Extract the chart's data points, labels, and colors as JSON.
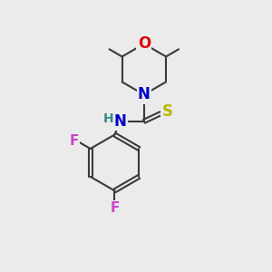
{
  "bg_color": "#ebebeb",
  "bond_color": "#3a3a3a",
  "bond_width": 1.5,
  "atom_colors": {
    "O": "#e00000",
    "N": "#0000cc",
    "S": "#b8b800",
    "F": "#cc44cc",
    "H": "#3a8a8a",
    "C": "#3a3a3a"
  },
  "fs": 10
}
